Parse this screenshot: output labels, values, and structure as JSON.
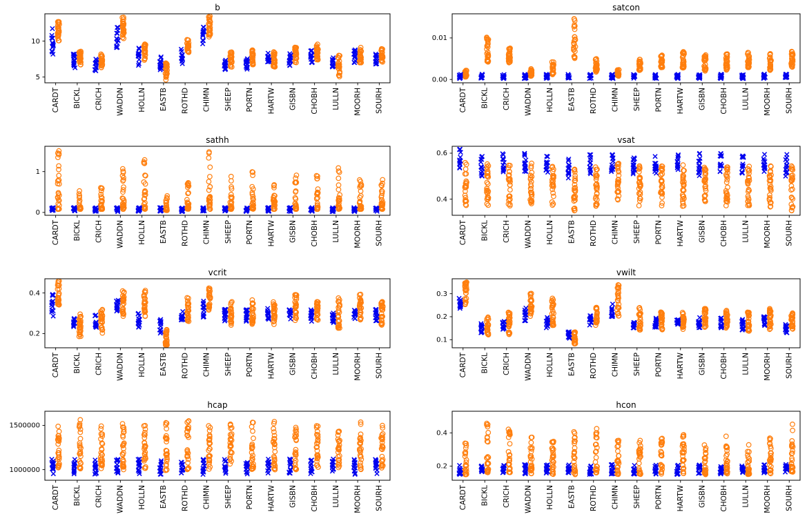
{
  "figure": {
    "background": "#ffffff",
    "grid_layout": "4 rows x 2 cols"
  },
  "chart_data": {
    "type": "scatter",
    "legend_position": "none",
    "categories": [
      "CARDT",
      "BICKL",
      "CRICH",
      "WADDN",
      "HOLLN",
      "EASTB",
      "ROTHD",
      "CHIMN",
      "SHEEP",
      "PORTN",
      "HARTW",
      "GISBN",
      "CHOBH",
      "LULLN",
      "MOORH",
      "SOURH"
    ],
    "series_styles": {
      "blue": {
        "name": "blue_x",
        "marker": "x",
        "color": "#0000ee",
        "points_per_site": 13
      },
      "orange": {
        "name": "orange_o",
        "marker": "o",
        "color": "#ff7f0e",
        "points_per_site": 26
      }
    },
    "charts": [
      {
        "title": "b",
        "ylim": [
          4.2,
          13.8
        ],
        "ytick_values": [
          5,
          10
        ],
        "ytick_labels": [
          "5",
          "10"
        ],
        "orange_skew": 1.0,
        "blue_ranges": [
          [
            8.0,
            11.8
          ],
          [
            6.2,
            8.2
          ],
          [
            5.8,
            7.6
          ],
          [
            8.8,
            12.2
          ],
          [
            6.6,
            9.2
          ],
          [
            6.0,
            8.0
          ],
          [
            6.6,
            9.0
          ],
          [
            9.2,
            12.4
          ],
          [
            6.0,
            7.6
          ],
          [
            6.0,
            7.6
          ],
          [
            7.0,
            8.6
          ],
          [
            6.6,
            8.6
          ],
          [
            7.0,
            8.8
          ],
          [
            6.2,
            8.0
          ],
          [
            7.0,
            8.8
          ],
          [
            6.6,
            8.2
          ]
        ],
        "orange_ranges": [
          [
            9.8,
            13.2
          ],
          [
            6.6,
            8.6
          ],
          [
            6.2,
            8.2
          ],
          [
            10.0,
            13.4
          ],
          [
            7.0,
            9.6
          ],
          [
            4.6,
            7.0
          ],
          [
            8.4,
            10.2
          ],
          [
            10.4,
            13.6
          ],
          [
            6.4,
            8.6
          ],
          [
            6.6,
            8.8
          ],
          [
            6.4,
            8.6
          ],
          [
            7.0,
            9.2
          ],
          [
            7.4,
            9.6
          ],
          [
            5.0,
            8.0
          ],
          [
            7.0,
            9.2
          ],
          [
            7.0,
            9.0
          ]
        ]
      },
      {
        "title": "satcon",
        "ylim": [
          -0.0008,
          0.0158
        ],
        "ytick_values": [
          0,
          0.01
        ],
        "ytick_labels": [
          "0.00",
          "0.01"
        ],
        "orange_skew": 1.4,
        "blue_range_all": [
          0.0002,
          0.0013
        ],
        "orange_ranges": [
          [
            0.0006,
            0.0022
          ],
          [
            0.0042,
            0.0102
          ],
          [
            0.004,
            0.0082
          ],
          [
            0.0008,
            0.0026
          ],
          [
            0.0012,
            0.0042
          ],
          [
            0.005,
            0.0156
          ],
          [
            0.0018,
            0.0052
          ],
          [
            0.0008,
            0.0026
          ],
          [
            0.0022,
            0.0058
          ],
          [
            0.0028,
            0.0066
          ],
          [
            0.0028,
            0.0068
          ],
          [
            0.002,
            0.006
          ],
          [
            0.0022,
            0.0062
          ],
          [
            0.0028,
            0.0066
          ],
          [
            0.0022,
            0.0062
          ],
          [
            0.003,
            0.007
          ]
        ]
      },
      {
        "title": "sathh",
        "ylim": [
          -0.07,
          1.62
        ],
        "ytick_values": [
          0,
          1
        ],
        "ytick_labels": [
          "0",
          "1"
        ],
        "orange_skew": 2.4,
        "blue_range_all": [
          0.02,
          0.12
        ],
        "orange_ranges": [
          [
            0.08,
            1.52
          ],
          [
            0.08,
            0.56
          ],
          [
            0.08,
            0.82
          ],
          [
            0.08,
            1.42
          ],
          [
            0.08,
            1.32
          ],
          [
            0.05,
            0.42
          ],
          [
            0.08,
            0.86
          ],
          [
            0.08,
            1.5
          ],
          [
            0.08,
            0.92
          ],
          [
            0.08,
            1.02
          ],
          [
            0.08,
            0.78
          ],
          [
            0.08,
            0.92
          ],
          [
            0.08,
            0.92
          ],
          [
            0.08,
            1.22
          ],
          [
            0.08,
            0.84
          ],
          [
            0.08,
            0.82
          ]
        ]
      },
      {
        "title": "vsat",
        "ylim": [
          0.33,
          0.63
        ],
        "ytick_values": [
          0.4,
          0.6
        ],
        "ytick_labels": [
          "0.4",
          "0.6"
        ],
        "orange_skew": 1.0,
        "blue_ranges": [
          [
            0.53,
            0.62
          ],
          [
            0.5,
            0.6
          ],
          [
            0.51,
            0.6
          ],
          [
            0.52,
            0.61
          ],
          [
            0.51,
            0.6
          ],
          [
            0.49,
            0.59
          ],
          [
            0.51,
            0.6
          ],
          [
            0.52,
            0.61
          ],
          [
            0.5,
            0.6
          ],
          [
            0.51,
            0.6
          ],
          [
            0.51,
            0.6
          ],
          [
            0.5,
            0.6
          ],
          [
            0.51,
            0.6
          ],
          [
            0.5,
            0.59
          ],
          [
            0.51,
            0.6
          ],
          [
            0.5,
            0.6
          ]
        ],
        "orange_ranges": [
          [
            0.37,
            0.56
          ],
          [
            0.37,
            0.56
          ],
          [
            0.37,
            0.55
          ],
          [
            0.38,
            0.56
          ],
          [
            0.37,
            0.55
          ],
          [
            0.35,
            0.53
          ],
          [
            0.37,
            0.55
          ],
          [
            0.38,
            0.56
          ],
          [
            0.37,
            0.55
          ],
          [
            0.37,
            0.55
          ],
          [
            0.37,
            0.55
          ],
          [
            0.37,
            0.55
          ],
          [
            0.37,
            0.55
          ],
          [
            0.37,
            0.55
          ],
          [
            0.36,
            0.55
          ],
          [
            0.34,
            0.55
          ]
        ]
      },
      {
        "title": "vcrit",
        "ylim": [
          0.13,
          0.47
        ],
        "ytick_values": [
          0.2,
          0.4
        ],
        "ytick_labels": [
          "0.2",
          "0.4"
        ],
        "orange_skew": 1.0,
        "blue_ranges": [
          [
            0.28,
            0.4
          ],
          [
            0.22,
            0.28
          ],
          [
            0.23,
            0.3
          ],
          [
            0.3,
            0.38
          ],
          [
            0.23,
            0.3
          ],
          [
            0.2,
            0.27
          ],
          [
            0.26,
            0.32
          ],
          [
            0.28,
            0.36
          ],
          [
            0.26,
            0.32
          ],
          [
            0.26,
            0.32
          ],
          [
            0.27,
            0.33
          ],
          [
            0.26,
            0.32
          ],
          [
            0.26,
            0.32
          ],
          [
            0.25,
            0.31
          ],
          [
            0.27,
            0.33
          ],
          [
            0.26,
            0.32
          ]
        ],
        "orange_ranges": [
          [
            0.33,
            0.46
          ],
          [
            0.18,
            0.3
          ],
          [
            0.2,
            0.32
          ],
          [
            0.28,
            0.42
          ],
          [
            0.28,
            0.42
          ],
          [
            0.14,
            0.22
          ],
          [
            0.26,
            0.38
          ],
          [
            0.3,
            0.43
          ],
          [
            0.24,
            0.36
          ],
          [
            0.24,
            0.38
          ],
          [
            0.24,
            0.36
          ],
          [
            0.26,
            0.4
          ],
          [
            0.26,
            0.38
          ],
          [
            0.22,
            0.38
          ],
          [
            0.26,
            0.4
          ],
          [
            0.24,
            0.36
          ]
        ]
      },
      {
        "title": "vwilt",
        "ylim": [
          0.065,
          0.365
        ],
        "ytick_values": [
          0.1,
          0.2,
          0.3
        ],
        "ytick_labels": [
          "0.1",
          "0.2",
          "0.3"
        ],
        "orange_skew": 1.0,
        "blue_ranges": [
          [
            0.22,
            0.28
          ],
          [
            0.13,
            0.17
          ],
          [
            0.14,
            0.18
          ],
          [
            0.18,
            0.24
          ],
          [
            0.15,
            0.2
          ],
          [
            0.1,
            0.14
          ],
          [
            0.16,
            0.21
          ],
          [
            0.2,
            0.27
          ],
          [
            0.15,
            0.19
          ],
          [
            0.15,
            0.2
          ],
          [
            0.16,
            0.2
          ],
          [
            0.15,
            0.2
          ],
          [
            0.15,
            0.2
          ],
          [
            0.14,
            0.19
          ],
          [
            0.16,
            0.2
          ],
          [
            0.13,
            0.17
          ]
        ],
        "orange_ranges": [
          [
            0.25,
            0.35
          ],
          [
            0.12,
            0.2
          ],
          [
            0.12,
            0.22
          ],
          [
            0.2,
            0.33
          ],
          [
            0.16,
            0.28
          ],
          [
            0.08,
            0.14
          ],
          [
            0.16,
            0.24
          ],
          [
            0.2,
            0.34
          ],
          [
            0.14,
            0.24
          ],
          [
            0.14,
            0.22
          ],
          [
            0.14,
            0.22
          ],
          [
            0.15,
            0.24
          ],
          [
            0.15,
            0.24
          ],
          [
            0.13,
            0.22
          ],
          [
            0.14,
            0.24
          ],
          [
            0.13,
            0.22
          ]
        ]
      },
      {
        "title": "hcap",
        "ylim": [
          880000,
          1660000
        ],
        "ytick_values": [
          1000000,
          1500000
        ],
        "ytick_labels": [
          "1000000",
          "1500000"
        ],
        "orange_skew": 1.2,
        "blue_range_all": [
          945000,
          1120000
        ],
        "orange_ranges": [
          [
            1000000,
            1500000
          ],
          [
            1010000,
            1600000
          ],
          [
            1000000,
            1500000
          ],
          [
            1000000,
            1520000
          ],
          [
            1000000,
            1500000
          ],
          [
            990000,
            1530000
          ],
          [
            1000000,
            1560000
          ],
          [
            1000000,
            1530000
          ],
          [
            1000000,
            1520000
          ],
          [
            1000000,
            1540000
          ],
          [
            1000000,
            1560000
          ],
          [
            1000000,
            1530000
          ],
          [
            1000000,
            1500000
          ],
          [
            1000000,
            1480000
          ],
          [
            1000000,
            1560000
          ],
          [
            1000000,
            1570000
          ]
        ]
      },
      {
        "title": "hcon",
        "ylim": [
          0.115,
          0.53
        ],
        "ytick_values": [
          0.2,
          0.4
        ],
        "ytick_labels": [
          "0.2",
          "0.4"
        ],
        "orange_skew": 1.6,
        "blue_range_all": [
          0.15,
          0.21
        ],
        "orange_ranges": [
          [
            0.15,
            0.34
          ],
          [
            0.16,
            0.47
          ],
          [
            0.16,
            0.43
          ],
          [
            0.15,
            0.38
          ],
          [
            0.15,
            0.36
          ],
          [
            0.15,
            0.44
          ],
          [
            0.16,
            0.43
          ],
          [
            0.15,
            0.36
          ],
          [
            0.15,
            0.36
          ],
          [
            0.15,
            0.38
          ],
          [
            0.15,
            0.41
          ],
          [
            0.15,
            0.36
          ],
          [
            0.15,
            0.38
          ],
          [
            0.15,
            0.33
          ],
          [
            0.15,
            0.38
          ],
          [
            0.16,
            0.46
          ]
        ]
      }
    ]
  }
}
